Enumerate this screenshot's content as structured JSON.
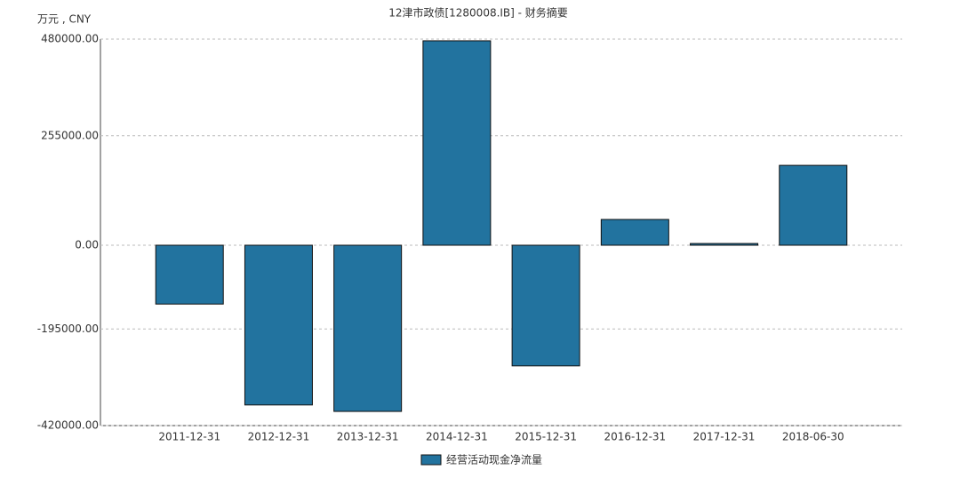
{
  "chart_data": {
    "type": "bar",
    "title": "12津市政债[1280008.IB] - 财务摘要",
    "y_axis_label": "万元 , CNY",
    "categories": [
      "2011-12-31",
      "2012-12-31",
      "2013-12-31",
      "2014-12-31",
      "2015-12-31",
      "2016-12-31",
      "2017-12-31",
      "2018-06-30"
    ],
    "series": [
      {
        "name": "经营活动现金净流量",
        "color": "#22739f",
        "values": [
          -137000,
          -372000,
          -387000,
          476000,
          -281000,
          60000,
          4000,
          186000
        ]
      }
    ],
    "ylim": [
      -420000,
      480000
    ],
    "yticks": [
      {
        "value": -420000,
        "label": "-420000.00"
      },
      {
        "value": -195000,
        "label": "-195000.00"
      },
      {
        "value": 0,
        "label": "0.00"
      },
      {
        "value": 255000,
        "label": "255000.00"
      },
      {
        "value": 480000,
        "label": "480000.00"
      }
    ],
    "grid": true
  }
}
